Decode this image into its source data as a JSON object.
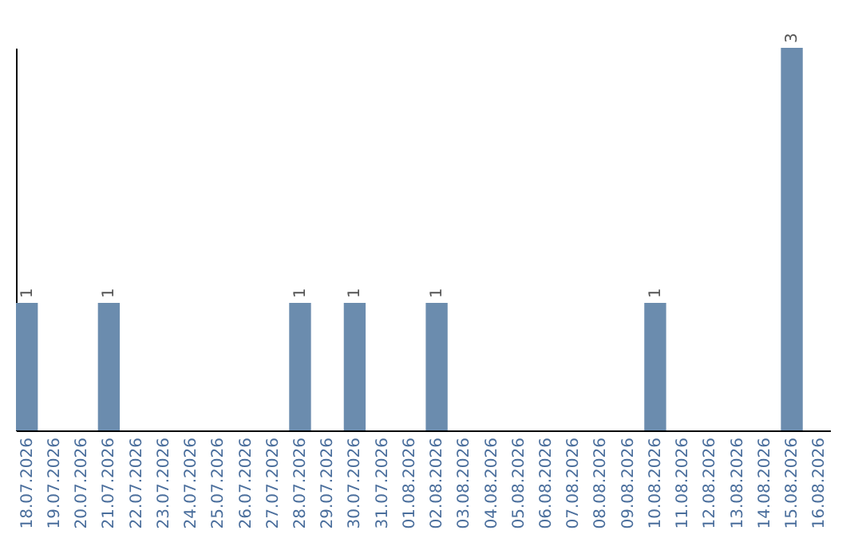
{
  "chart_data": {
    "type": "bar",
    "categories": [
      "18.07.2026",
      "19.07.2026",
      "20.07.2026",
      "21.07.2026",
      "22.07.2026",
      "23.07.2026",
      "24.07.2026",
      "25.07.2026",
      "26.07.2026",
      "27.07.2026",
      "28.07.2026",
      "29.07.2026",
      "30.07.2026",
      "31.07.2026",
      "01.08.2026",
      "02.08.2026",
      "03.08.2026",
      "04.08.2026",
      "05.08.2026",
      "06.08.2026",
      "07.08.2026",
      "08.08.2026",
      "09.08.2026",
      "10.08.2026",
      "11.08.2026",
      "12.08.2026",
      "13.08.2026",
      "14.08.2026",
      "15.08.2026",
      "16.08.2026"
    ],
    "values": [
      1,
      0,
      0,
      1,
      0,
      0,
      0,
      0,
      0,
      0,
      1,
      0,
      1,
      0,
      0,
      1,
      0,
      0,
      0,
      0,
      0,
      0,
      0,
      1,
      0,
      0,
      0,
      0,
      3,
      0
    ],
    "value_labels": [
      "1",
      null,
      null,
      "1",
      null,
      null,
      null,
      null,
      null,
      null,
      "1",
      null,
      "1",
      null,
      null,
      "1",
      null,
      null,
      null,
      null,
      null,
      null,
      null,
      "1",
      null,
      null,
      null,
      null,
      "3",
      null
    ],
    "color": "#6b8cae",
    "ylim": [
      0,
      3
    ],
    "grid": false
  }
}
